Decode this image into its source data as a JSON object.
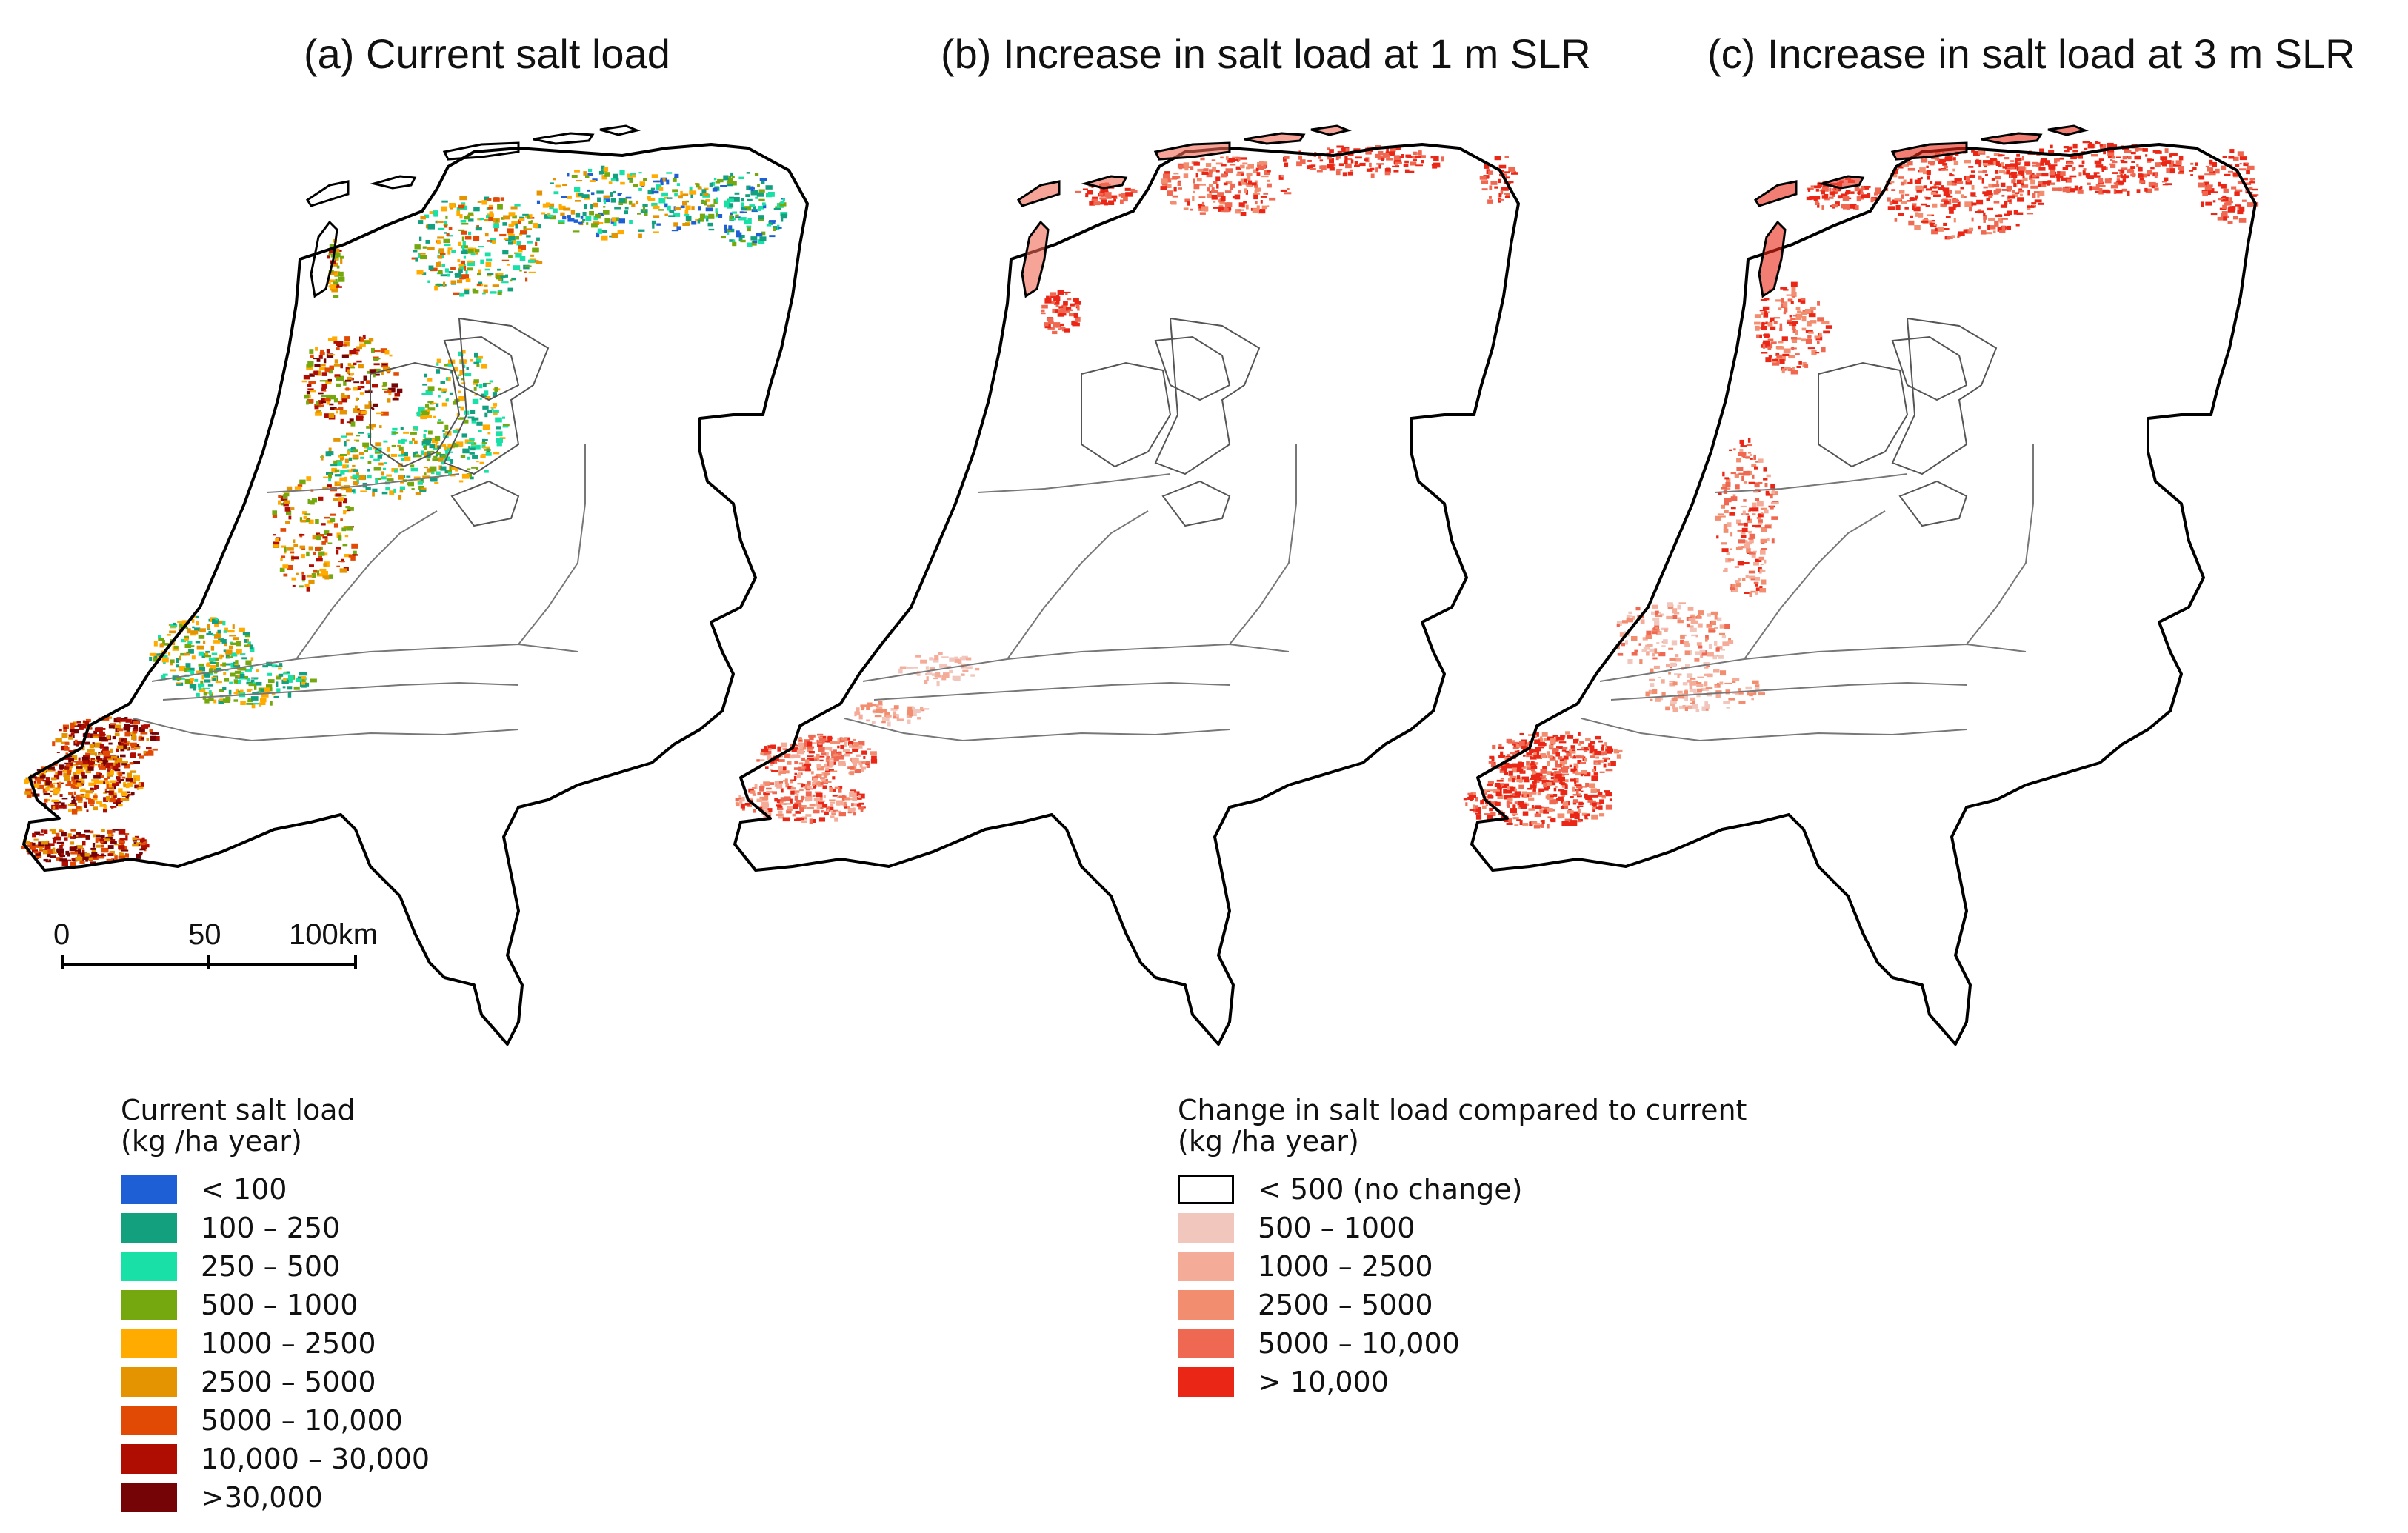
{
  "panels": [
    {
      "title": "(a) Current salt load",
      "type": "current"
    },
    {
      "title": "(b) Increase in salt load at 1 m SLR",
      "type": "slr1"
    },
    {
      "title": "(c) Increase in salt load at 3 m SLR",
      "type": "slr3"
    }
  ],
  "scale_bar": {
    "labels": [
      "0",
      "50",
      "100km"
    ],
    "values_km": [
      0,
      50,
      100
    ]
  },
  "legend_current": {
    "title_line1": "Current salt load",
    "title_line2": "(kg /ha year)",
    "items": [
      {
        "label": "< 100",
        "color": "#1f5fd6"
      },
      {
        "label": "100 – 250",
        "color": "#12a07f"
      },
      {
        "label": "250 – 500",
        "color": "#19e0a6"
      },
      {
        "label": "500 – 1000",
        "color": "#74a80e"
      },
      {
        "label": "1000 – 2500",
        "color": "#ffab00"
      },
      {
        "label": "2500 – 5000",
        "color": "#e39400"
      },
      {
        "label": "5000 – 10,000",
        "color": "#e04a05"
      },
      {
        "label": "10,000 – 30,000",
        "color": "#b00d02"
      },
      {
        "label": ">30,000",
        "color": "#740405"
      }
    ]
  },
  "legend_change": {
    "title_line1": "Change in salt load compared to current",
    "title_line2": "(kg /ha year)",
    "items": [
      {
        "label": "< 500 (no change)",
        "color": "#ffffff"
      },
      {
        "label": "500 – 1000",
        "color": "#f1c6bd"
      },
      {
        "label": "1000 – 2500",
        "color": "#f4ab98"
      },
      {
        "label": "2500 – 5000",
        "color": "#f28d6f"
      },
      {
        "label": "5000 – 10,000",
        "color": "#ee6852"
      },
      {
        "label": "> 10,000",
        "color": "#ea2716"
      }
    ]
  }
}
